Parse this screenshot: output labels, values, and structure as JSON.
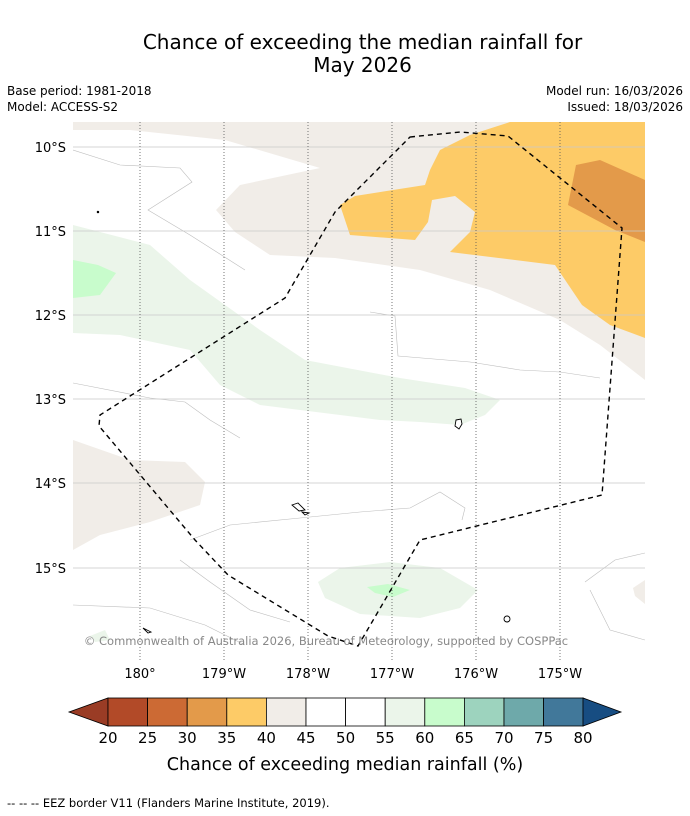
{
  "title": {
    "line1": "Chance of exceeding the median rainfall for",
    "line2": "May 2026"
  },
  "meta": {
    "base_period": "Base period: 1981-2018",
    "model": "Model: ACCESS-S2",
    "model_run": "Model run: 16/03/2026",
    "issued": "Issued: 18/03/2026"
  },
  "map": {
    "lat_labels": [
      "10°S",
      "11°S",
      "12°S",
      "13°S",
      "14°S",
      "15°S"
    ],
    "lon_labels": [
      "180°",
      "179°W",
      "178°W",
      "177°W",
      "176°W",
      "175°W"
    ],
    "copyright": "© Commonwealth of Australia 2026, Bureau of Meteorology, supported by COSPPac",
    "eez_color": "#000000"
  },
  "colorbar": {
    "ticks": [
      "20",
      "25",
      "30",
      "35",
      "40",
      "45",
      "50",
      "55",
      "60",
      "65",
      "70",
      "75",
      "80"
    ],
    "under_color": "#9a3c25",
    "over_color": "#174d82",
    "colors": [
      "#b24a28",
      "#cc6a34",
      "#e39a4a",
      "#fdcb67",
      "#f1ede8",
      "#ffffff",
      "#ffffff",
      "#ebf5ea",
      "#c8fccc",
      "#9dd3be",
      "#6ea9aa",
      "#41789a"
    ],
    "label": "Chance of exceeding median rainfall (%)"
  },
  "footer": {
    "eez_note": "--  --  -- EEZ border V11 (Flanders Marine Institute, 2019)."
  }
}
